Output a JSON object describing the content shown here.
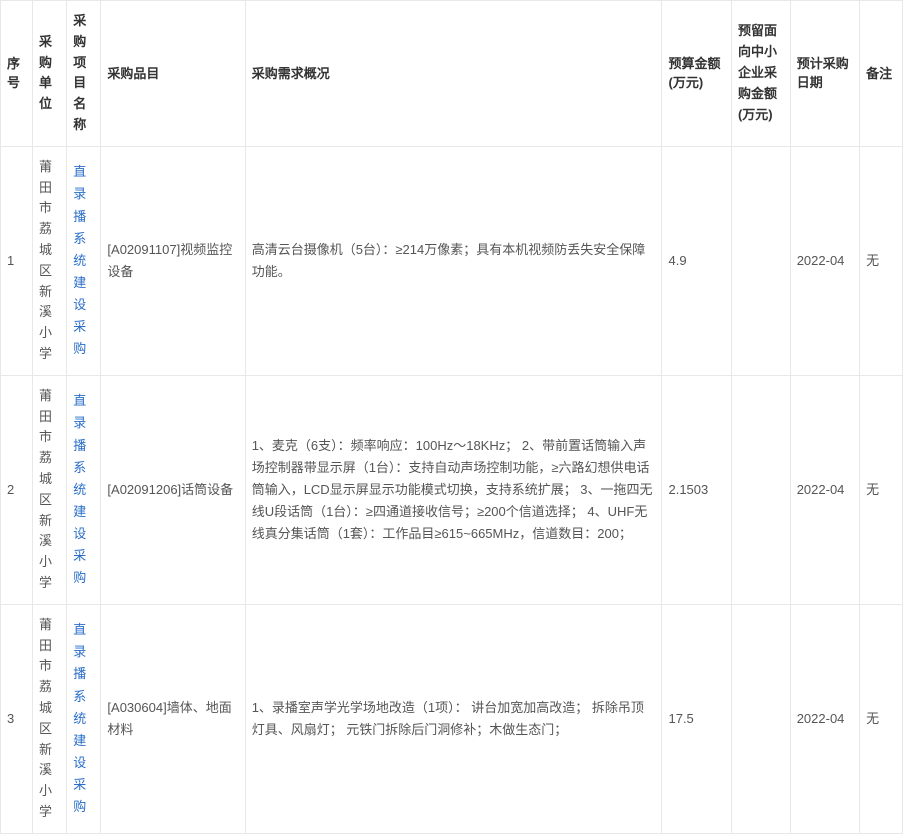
{
  "table": {
    "columns": {
      "seq": "序号",
      "unit": "采购单位",
      "proj": "采购项目名称",
      "item": "采购品目",
      "desc": "采购需求概况",
      "budget": "预算金额(万元)",
      "reserve": "预留面向中小企业采购金额(万元)",
      "date": "预计采购日期",
      "note": "备注"
    },
    "rows": [
      {
        "seq": "1",
        "unit": "莆田市荔城区新溪小学",
        "proj": "直录播系统建设采购",
        "item": "[A02091107]视频监控设备",
        "desc": "高清云台摄像机（5台）：≥214万像素；具有本机视频防丢失安全保障功能。",
        "budget": "4.9",
        "reserve": "",
        "date": "2022-04",
        "note": "无"
      },
      {
        "seq": "2",
        "unit": "莆田市荔城区新溪小学",
        "proj": "直录播系统建设采购",
        "item": "[A02091206]话筒设备",
        "desc": "1、麦克（6支）：频率响应：100Hz～18KHz； 2、带前置话筒输入声场控制器带显示屏（1台）：支持自动声场控制功能，≥六路幻想供电话筒输入，LCD显示屏显示功能模式切换，支持系统扩展； 3、一拖四无线U段话筒（1台）：≥四通道接收信号；≥200个信道选择； 4、UHF无线真分集话筒（1套）：工作品目≥615~665MHz，信道数目：200；",
        "budget": "2.1503",
        "reserve": "",
        "date": "2022-04",
        "note": "无"
      },
      {
        "seq": "3",
        "unit": "莆田市荔城区新溪小学",
        "proj": "直录播系统建设采购",
        "item": "[A030604]墙体、地面材料",
        "desc": "1、录播室声学光学场地改造（1项）： 讲台加宽加高改造； 拆除吊顶灯具、风扇灯； 元铁门拆除后门洞修补；木做生态门；",
        "budget": "17.5",
        "reserve": "",
        "date": "2022-04",
        "note": "无"
      }
    ]
  }
}
